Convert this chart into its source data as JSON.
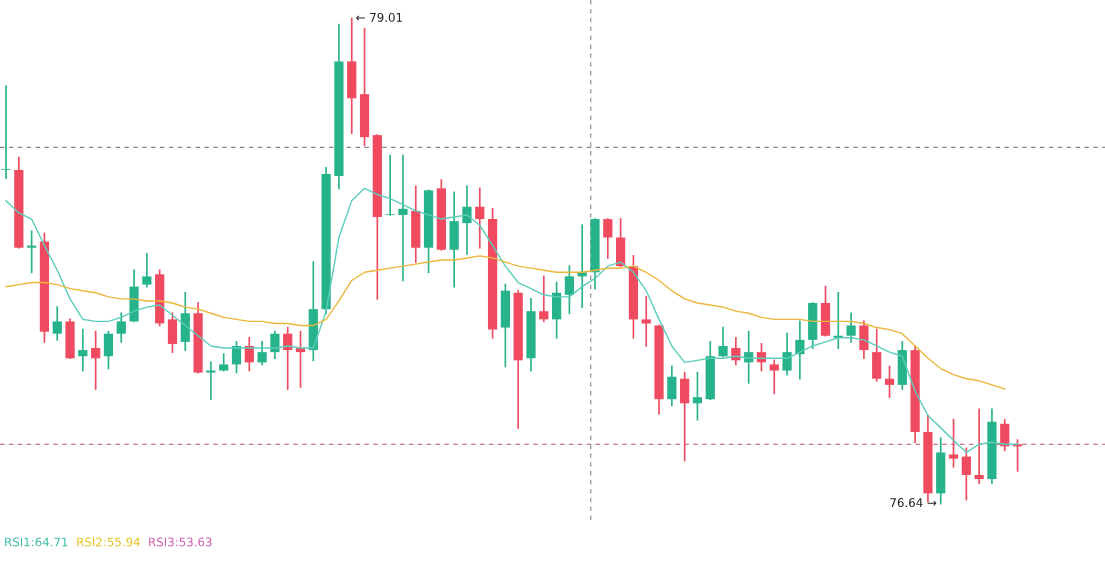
{
  "chart_data": {
    "type": "candlestick",
    "categories": [
      null,
      null,
      null,
      null,
      null,
      null,
      null,
      null,
      null,
      null,
      null,
      null,
      null,
      null,
      null,
      null,
      null,
      null,
      null,
      null,
      null,
      null,
      null,
      null,
      null,
      null,
      null,
      null,
      null,
      null,
      null,
      null,
      null,
      null,
      null,
      null,
      null,
      null,
      null,
      null,
      null,
      null,
      null,
      null,
      null,
      null,
      null,
      null,
      null,
      null,
      null,
      null,
      null,
      null,
      null,
      null,
      null,
      null,
      null,
      null,
      null,
      null,
      null,
      null,
      null,
      null,
      null,
      null,
      null,
      null,
      null,
      null,
      null,
      null,
      null,
      null,
      null,
      null,
      null,
      null
    ],
    "ohlc": [
      [
        78.27,
        78.68,
        78.23,
        78.27
      ],
      [
        78.27,
        78.33,
        77.89,
        77.89
      ],
      [
        77.89,
        77.97,
        77.77,
        77.9
      ],
      [
        77.92,
        77.96,
        77.43,
        77.48
      ],
      [
        77.47,
        77.6,
        77.44,
        77.53
      ],
      [
        77.53,
        77.54,
        77.35,
        77.35
      ],
      [
        77.36,
        77.49,
        77.29,
        77.39
      ],
      [
        77.4,
        77.48,
        77.2,
        77.35
      ],
      [
        77.36,
        77.48,
        77.3,
        77.47
      ],
      [
        77.47,
        77.57,
        77.43,
        77.53
      ],
      [
        77.53,
        77.78,
        77.53,
        77.7
      ],
      [
        77.71,
        77.86,
        77.7,
        77.75
      ],
      [
        77.76,
        77.78,
        77.51,
        77.52
      ],
      [
        77.54,
        77.57,
        77.38,
        77.42
      ],
      [
        77.43,
        77.67,
        77.39,
        77.57
      ],
      [
        77.57,
        77.62,
        77.28,
        77.28
      ],
      [
        77.28,
        77.33,
        77.15,
        77.29
      ],
      [
        77.29,
        77.37,
        77.29,
        77.32
      ],
      [
        77.32,
        77.43,
        77.28,
        77.41
      ],
      [
        77.41,
        77.45,
        77.29,
        77.33
      ],
      [
        77.33,
        77.43,
        77.32,
        77.38
      ],
      [
        77.38,
        77.48,
        77.35,
        77.47
      ],
      [
        77.47,
        77.5,
        77.2,
        77.39
      ],
      [
        77.4,
        77.48,
        77.21,
        77.38
      ],
      [
        77.39,
        77.82,
        77.34,
        77.59
      ],
      [
        77.59,
        78.28,
        77.57,
        78.25
      ],
      [
        78.24,
        78.98,
        78.18,
        78.8
      ],
      [
        78.8,
        79.01,
        78.45,
        78.62
      ],
      [
        78.64,
        78.96,
        78.39,
        78.43
      ],
      [
        78.44,
        78.44,
        77.64,
        78.04
      ],
      [
        78.05,
        78.34,
        78.05,
        78.05
      ],
      [
        78.05,
        78.34,
        77.73,
        78.08
      ],
      [
        78.07,
        78.19,
        77.82,
        77.89
      ],
      [
        77.89,
        78.17,
        77.77,
        78.17
      ],
      [
        78.18,
        78.22,
        77.88,
        77.88
      ],
      [
        77.88,
        78.16,
        77.7,
        78.02
      ],
      [
        78.01,
        78.19,
        77.86,
        78.09
      ],
      [
        78.09,
        78.18,
        77.89,
        78.03
      ],
      [
        78.03,
        78.08,
        77.45,
        77.49
      ],
      [
        77.5,
        77.71,
        77.31,
        77.68
      ],
      [
        77.67,
        77.68,
        77.01,
        77.34
      ],
      [
        77.35,
        77.64,
        77.29,
        77.58
      ],
      [
        77.58,
        77.75,
        77.53,
        77.54
      ],
      [
        77.54,
        77.72,
        77.45,
        77.67
      ],
      [
        77.66,
        77.8,
        77.57,
        77.75
      ],
      [
        77.75,
        78.0,
        77.6,
        77.77
      ],
      [
        77.77,
        78.03,
        77.69,
        78.03
      ],
      [
        78.03,
        78.03,
        77.84,
        77.94
      ],
      [
        77.94,
        78.03,
        77.8,
        77.8
      ],
      [
        77.8,
        77.85,
        77.45,
        77.54
      ],
      [
        77.54,
        77.65,
        77.41,
        77.52
      ],
      [
        77.51,
        77.51,
        77.08,
        77.15
      ],
      [
        77.15,
        77.31,
        77.12,
        77.26
      ],
      [
        77.25,
        77.28,
        76.85,
        77.13
      ],
      [
        77.13,
        77.28,
        77.05,
        77.16
      ],
      [
        77.15,
        77.43,
        77.15,
        77.36
      ],
      [
        77.36,
        77.5,
        77.36,
        77.41
      ],
      [
        77.4,
        77.45,
        77.32,
        77.34
      ],
      [
        77.33,
        77.48,
        77.23,
        77.38
      ],
      [
        77.38,
        77.42,
        77.29,
        77.33
      ],
      [
        77.32,
        77.34,
        77.18,
        77.29
      ],
      [
        77.29,
        77.47,
        77.27,
        77.38
      ],
      [
        77.37,
        77.53,
        77.25,
        77.44
      ],
      [
        77.44,
        77.62,
        77.4,
        77.62
      ],
      [
        77.62,
        77.7,
        77.46,
        77.46
      ],
      [
        77.45,
        77.67,
        77.4,
        77.46
      ],
      [
        77.46,
        77.57,
        77.43,
        77.51
      ],
      [
        77.51,
        77.53,
        77.35,
        77.39
      ],
      [
        77.38,
        77.49,
        77.24,
        77.25
      ],
      [
        77.25,
        77.31,
        77.16,
        77.22
      ],
      [
        77.22,
        77.43,
        77.2,
        77.39
      ],
      [
        77.39,
        77.41,
        76.94,
        76.99
      ],
      [
        76.99,
        77.07,
        76.65,
        76.69
      ],
      [
        76.69,
        76.96,
        76.64,
        76.89
      ],
      [
        76.88,
        77.05,
        76.82,
        76.86
      ],
      [
        76.87,
        76.91,
        76.66,
        76.78
      ],
      [
        76.78,
        77.1,
        76.74,
        76.76
      ],
      [
        76.76,
        77.1,
        76.74,
        77.04
      ],
      [
        77.03,
        77.05,
        76.9,
        76.92
      ],
      [
        76.93,
        76.95,
        76.8,
        76.92
      ]
    ],
    "colors": [
      "#26b28a",
      "#ef4a5f",
      "#26b28a",
      "#ef4a5f",
      "#26b28a",
      "#ef4a5f",
      "#26b28a",
      "#ef4a5f",
      "#26b28a",
      "#26b28a",
      "#26b28a",
      "#26b28a",
      "#ef4a5f",
      "#ef4a5f",
      "#26b28a",
      "#ef4a5f",
      "#26b28a",
      "#26b28a",
      "#26b28a",
      "#ef4a5f",
      "#26b28a",
      "#26b28a",
      "#ef4a5f",
      "#ef4a5f",
      "#26b28a",
      "#26b28a",
      "#26b28a",
      "#ef4a5f",
      "#ef4a5f",
      "#ef4a5f",
      "#26b28a",
      "#26b28a",
      "#ef4a5f",
      "#26b28a",
      "#ef4a5f",
      "#26b28a",
      "#26b28a",
      "#ef4a5f",
      "#ef4a5f",
      "#26b28a",
      "#ef4a5f",
      "#26b28a",
      "#ef4a5f",
      "#26b28a",
      "#26b28a",
      "#26b28a",
      "#26b28a",
      "#ef4a5f",
      "#ef4a5f",
      "#ef4a5f",
      "#ef4a5f",
      "#ef4a5f",
      "#26b28a",
      "#ef4a5f",
      "#26b28a",
      "#26b28a",
      "#26b28a",
      "#ef4a5f",
      "#26b28a",
      "#ef4a5f",
      "#ef4a5f",
      "#26b28a",
      "#26b28a",
      "#26b28a",
      "#ef4a5f",
      "#26b28a",
      "#26b28a",
      "#ef4a5f",
      "#ef4a5f",
      "#ef4a5f",
      "#26b28a",
      "#ef4a5f",
      "#ef4a5f",
      "#26b28a",
      "#ef4a5f",
      "#ef4a5f",
      "#ef4a5f",
      "#26b28a",
      "#ef4a5f",
      "#ef4a5f"
    ],
    "series": [
      {
        "type": "line",
        "color": "#5ccdbb",
        "values": [
          78.12,
          78.06,
          78.03,
          77.9,
          77.78,
          77.64,
          77.54,
          77.53,
          77.53,
          77.55,
          77.58,
          77.6,
          77.61,
          77.56,
          77.51,
          77.46,
          77.41,
          77.4,
          77.4,
          77.4,
          77.4,
          77.4,
          77.41,
          77.4,
          77.4,
          77.58,
          77.94,
          78.12,
          78.18,
          78.15,
          78.13,
          78.1,
          78.07,
          78.05,
          78.03,
          78.04,
          78.05,
          78.0,
          77.9,
          77.8,
          77.72,
          77.69,
          77.66,
          77.65,
          77.65,
          77.7,
          77.74,
          77.8,
          77.82,
          77.77,
          77.68,
          77.54,
          77.41,
          77.33,
          77.34,
          77.35,
          77.35,
          77.36,
          77.35,
          77.35,
          77.35,
          77.35,
          77.38,
          77.41,
          77.43,
          77.45,
          77.45,
          77.44,
          77.41,
          77.38,
          77.36,
          77.19,
          77.07,
          77.01,
          76.95,
          76.89,
          76.93,
          76.94,
          76.93,
          76.93
        ]
      },
      {
        "type": "line",
        "color": "#ebb63c",
        "values": [
          77.7,
          77.71,
          77.72,
          77.72,
          77.71,
          77.69,
          77.68,
          77.67,
          77.65,
          77.64,
          77.64,
          77.63,
          77.63,
          77.62,
          77.6,
          77.59,
          77.57,
          77.55,
          77.54,
          77.53,
          77.53,
          77.52,
          77.52,
          77.51,
          77.51,
          77.54,
          77.63,
          77.73,
          77.77,
          77.78,
          77.79,
          77.8,
          77.81,
          77.82,
          77.83,
          77.83,
          77.84,
          77.85,
          77.84,
          77.82,
          77.8,
          77.79,
          77.78,
          77.77,
          77.77,
          77.77,
          77.78,
          77.79,
          77.79,
          77.8,
          77.77,
          77.73,
          77.68,
          77.64,
          77.62,
          77.61,
          77.6,
          77.58,
          77.57,
          77.55,
          77.54,
          77.54,
          77.54,
          77.53,
          77.53,
          77.53,
          77.53,
          77.52,
          77.5,
          77.49,
          77.47,
          77.41,
          77.35,
          77.3,
          77.27,
          77.25,
          77.24,
          77.22,
          77.2,
          null
        ]
      }
    ],
    "ylim": [
      76.56,
      79.1
    ],
    "ref_lines": [
      {
        "axis": "y",
        "value": 78.38,
        "color": "#888888",
        "line_style": "dashed"
      },
      {
        "axis": "y",
        "value": 76.93,
        "color": "#b5536a",
        "line_style": "dashed"
      }
    ],
    "annotations": [
      "← 79.01",
      "76.64 →",
      "RSI1:64.71",
      "RSI2:55.94",
      "RSI3:53.63"
    ],
    "grid": false
  }
}
